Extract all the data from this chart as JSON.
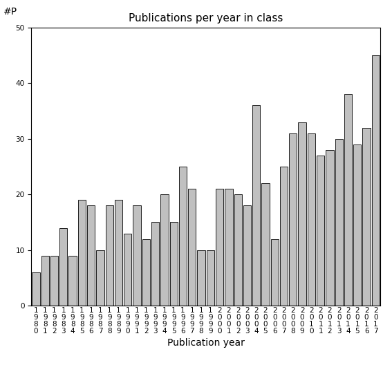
{
  "title": "Publications per year in class",
  "xlabel": "Publication year",
  "ylabel": "#P",
  "years": [
    "1980",
    "1981",
    "1982",
    "1983",
    "1984",
    "1985",
    "1986",
    "1987",
    "1988",
    "1989",
    "1990",
    "1991",
    "1992",
    "1993",
    "1994",
    "1995",
    "1996",
    "1997",
    "1998",
    "1999",
    "2000",
    "2001",
    "2002",
    "2003",
    "2004",
    "2005",
    "2006",
    "2007",
    "2008",
    "2009",
    "2010",
    "2011",
    "2012",
    "2013",
    "2014",
    "2015",
    "2016",
    "2017"
  ],
  "values": [
    6,
    9,
    9,
    14,
    9,
    19,
    18,
    10,
    18,
    19,
    13,
    18,
    12,
    15,
    20,
    15,
    25,
    21,
    10,
    10,
    21,
    21,
    20,
    18,
    36,
    22,
    12,
    25,
    31,
    33,
    31,
    27,
    28,
    30,
    38,
    29,
    32,
    45
  ],
  "bar_color": "#c0c0c0",
  "bar_edge_color": "#000000",
  "ylim": [
    0,
    50
  ],
  "yticks": [
    0,
    10,
    20,
    30,
    40,
    50
  ],
  "bg_color": "#ffffff",
  "title_fontsize": 11,
  "axis_label_fontsize": 10,
  "tick_fontsize": 7.5
}
